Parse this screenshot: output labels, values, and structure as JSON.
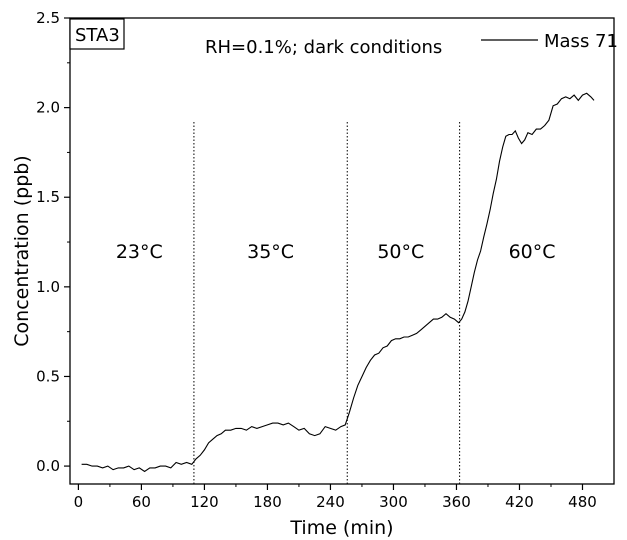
{
  "chart_data": {
    "type": "line",
    "title": "",
    "panel_label": "STA3",
    "annotation": "RH=0.1%; dark conditions",
    "xlabel": "Time (min)",
    "ylabel": "Concentration (ppb)",
    "xlim": [
      -8,
      510
    ],
    "ylim": [
      -0.1,
      2.5
    ],
    "xticks": [
      0,
      60,
      120,
      180,
      240,
      300,
      360,
      420,
      480
    ],
    "yticks": [
      0.0,
      0.5,
      1.0,
      1.5,
      2.0,
      2.5
    ],
    "ytick_labels": [
      "0.0",
      "0.5",
      "1.0",
      "1.5",
      "2.0",
      "2.5"
    ],
    "grid": false,
    "legend": {
      "position": "top-right",
      "entries": [
        "Mass 71"
      ]
    },
    "vlines": [
      110,
      256,
      363
    ],
    "regions": [
      {
        "label": "23°C",
        "x": 58,
        "y": 1.2
      },
      {
        "label": "35°C",
        "x": 183,
        "y": 1.2
      },
      {
        "label": "50°C",
        "x": 307,
        "y": 1.2
      },
      {
        "label": "60°C",
        "x": 432,
        "y": 1.2
      }
    ],
    "series": [
      {
        "name": "Mass 71",
        "color": "#000000",
        "x": [
          3,
          8,
          13,
          18,
          23,
          28,
          33,
          38,
          43,
          48,
          53,
          58,
          63,
          68,
          73,
          78,
          83,
          88,
          93,
          98,
          103,
          108,
          112,
          116,
          120,
          124,
          128,
          132,
          136,
          140,
          145,
          150,
          155,
          160,
          165,
          170,
          175,
          180,
          185,
          190,
          195,
          200,
          205,
          210,
          215,
          220,
          225,
          230,
          235,
          240,
          245,
          250,
          254,
          258,
          262,
          266,
          270,
          274,
          278,
          282,
          286,
          290,
          294,
          298,
          302,
          306,
          310,
          314,
          318,
          322,
          326,
          330,
          334,
          338,
          342,
          346,
          350,
          354,
          358,
          362,
          365,
          368,
          371,
          374,
          377,
          380,
          383,
          386,
          389,
          392,
          395,
          398,
          401,
          404,
          407,
          410,
          413,
          416,
          419,
          422,
          425,
          428,
          432,
          436,
          440,
          444,
          448,
          452,
          456,
          460,
          464,
          468,
          472,
          476,
          480,
          484,
          488,
          491
        ],
        "y": [
          0.01,
          0.01,
          0.0,
          0.0,
          -0.01,
          0.0,
          -0.02,
          -0.01,
          -0.01,
          0.0,
          -0.02,
          -0.01,
          -0.03,
          -0.01,
          -0.01,
          0.0,
          0.0,
          -0.01,
          0.02,
          0.01,
          0.02,
          0.01,
          0.04,
          0.06,
          0.09,
          0.13,
          0.15,
          0.17,
          0.18,
          0.2,
          0.2,
          0.21,
          0.21,
          0.2,
          0.22,
          0.21,
          0.22,
          0.23,
          0.24,
          0.24,
          0.23,
          0.24,
          0.22,
          0.2,
          0.21,
          0.18,
          0.17,
          0.18,
          0.22,
          0.21,
          0.2,
          0.22,
          0.23,
          0.3,
          0.38,
          0.45,
          0.5,
          0.55,
          0.59,
          0.62,
          0.63,
          0.66,
          0.67,
          0.7,
          0.71,
          0.71,
          0.72,
          0.72,
          0.73,
          0.74,
          0.76,
          0.78,
          0.8,
          0.82,
          0.82,
          0.83,
          0.85,
          0.83,
          0.82,
          0.8,
          0.82,
          0.86,
          0.92,
          1.0,
          1.08,
          1.15,
          1.2,
          1.28,
          1.35,
          1.43,
          1.52,
          1.6,
          1.7,
          1.78,
          1.84,
          1.85,
          1.85,
          1.87,
          1.83,
          1.8,
          1.82,
          1.86,
          1.85,
          1.88,
          1.88,
          1.9,
          1.93,
          2.01,
          2.02,
          2.05,
          2.06,
          2.05,
          2.07,
          2.04,
          2.07,
          2.08,
          2.06,
          2.04
        ]
      }
    ]
  }
}
